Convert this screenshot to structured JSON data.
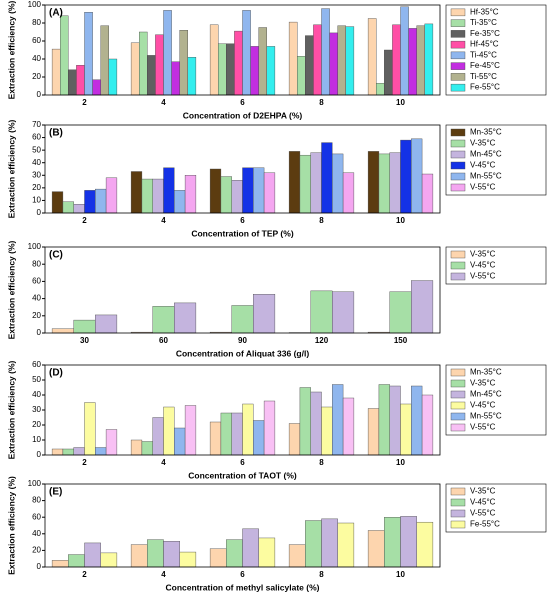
{
  "chart_data": [
    {
      "type": "bar",
      "title": "(A)",
      "x_label": "Concentration of D2EHPA (%)",
      "y_label": "Extraction efficiency (%)",
      "categories": [
        "2",
        "4",
        "6",
        "8",
        "10"
      ],
      "ylim": [
        0,
        100
      ],
      "yticks": [
        0,
        20,
        40,
        60,
        80,
        100
      ],
      "series": [
        {
          "name": "Hf-35°C",
          "color": "#fdd5ae",
          "values": [
            51,
            58,
            78,
            81,
            85
          ]
        },
        {
          "name": "Ti-35°C",
          "color": "#a6dfa6",
          "values": [
            88,
            70,
            57,
            43,
            13
          ]
        },
        {
          "name": "Fe-35°C",
          "color": "#606060",
          "values": [
            28,
            44,
            57,
            66,
            50
          ]
        },
        {
          "name": "Hf-45°C",
          "color": "#ff4fa6",
          "values": [
            33,
            67,
            71,
            78,
            78
          ]
        },
        {
          "name": "Ti-45°C",
          "color": "#8fb6ee",
          "values": [
            92,
            94,
            94,
            96,
            98
          ]
        },
        {
          "name": "Fe-45°C",
          "color": "#c22ee0",
          "values": [
            17,
            37,
            54,
            69,
            74
          ]
        },
        {
          "name": "Ti-55°C",
          "color": "#b2b28f",
          "values": [
            77,
            72,
            75,
            77,
            77
          ]
        },
        {
          "name": "Fe-55°C",
          "color": "#33eeee",
          "values": [
            40,
            42,
            54,
            76,
            79
          ]
        }
      ]
    },
    {
      "type": "bar",
      "title": "(B)",
      "x_label": "Concentration of TEP (%)",
      "y_label": "Extraction efficiency (%)",
      "categories": [
        "2",
        "4",
        "6",
        "8",
        "10"
      ],
      "ylim": [
        0,
        70
      ],
      "yticks": [
        0,
        10,
        20,
        30,
        40,
        50,
        60,
        70
      ],
      "series": [
        {
          "name": "Mn-35°C",
          "color": "#5c3c10",
          "values": [
            17,
            33,
            35,
            49,
            49
          ]
        },
        {
          "name": "V-35°C",
          "color": "#a6dfa6",
          "values": [
            9,
            27,
            29,
            46,
            47
          ]
        },
        {
          "name": "Mn-45°C",
          "color": "#c4b4de",
          "values": [
            7,
            27,
            26,
            48,
            48
          ]
        },
        {
          "name": "V-45°C",
          "color": "#1432e6",
          "values": [
            18,
            36,
            36,
            56,
            58
          ]
        },
        {
          "name": "Mn-55°C",
          "color": "#8fb6ee",
          "values": [
            19,
            18,
            36,
            47,
            59
          ]
        },
        {
          "name": "V-55°C",
          "color": "#f4a6f0",
          "values": [
            28,
            30,
            32,
            32,
            31
          ]
        }
      ]
    },
    {
      "type": "bar",
      "title": "(C)",
      "x_label": "Concentration of Aliquat 336 (g/l)",
      "y_label": "Extraction efficiency (%)",
      "categories": [
        "30",
        "60",
        "90",
        "120",
        "150"
      ],
      "ylim": [
        0,
        100
      ],
      "yticks": [
        0,
        20,
        40,
        60,
        80,
        100
      ],
      "series": [
        {
          "name": "V-35°C",
          "color": "#fdd5ae",
          "values": [
            5,
            1,
            1,
            0.5,
            1
          ]
        },
        {
          "name": "V-45°C",
          "color": "#a6dfa6",
          "values": [
            15,
            31,
            32,
            49,
            48
          ]
        },
        {
          "name": "V-55°C",
          "color": "#c4b4de",
          "values": [
            21,
            35,
            45,
            48,
            61
          ]
        }
      ]
    },
    {
      "type": "bar",
      "title": "(D)",
      "x_label": "Concentration of TAOT (%)",
      "y_label": "Extraction efficiency (%)",
      "categories": [
        "2",
        "4",
        "6",
        "8",
        "10"
      ],
      "ylim": [
        0,
        60
      ],
      "yticks": [
        0,
        10,
        20,
        30,
        40,
        50,
        60
      ],
      "series": [
        {
          "name": "Mn-35°C",
          "color": "#fdd5ae",
          "values": [
            4,
            10,
            22,
            21,
            31
          ]
        },
        {
          "name": "V-35°C",
          "color": "#a6dfa6",
          "values": [
            4,
            9,
            28,
            45,
            47
          ]
        },
        {
          "name": "Mn-45°C",
          "color": "#c4b4de",
          "values": [
            5,
            25,
            28,
            42,
            46
          ]
        },
        {
          "name": "V-45°C",
          "color": "#fcfca0",
          "values": [
            35,
            32,
            34,
            32,
            34
          ]
        },
        {
          "name": "Mn-55°C",
          "color": "#8fb6ee",
          "values": [
            5,
            18,
            23,
            47,
            46
          ]
        },
        {
          "name": "V-55°C",
          "color": "#f8c0f4",
          "values": [
            17,
            33,
            36,
            38,
            40
          ]
        }
      ]
    },
    {
      "type": "bar",
      "title": "(E)",
      "x_label": "Concentration of methyl salicylate (%)",
      "y_label": "Extraction efficiency (%)",
      "categories": [
        "2",
        "4",
        "6",
        "8",
        "10"
      ],
      "ylim": [
        0,
        100
      ],
      "yticks": [
        0,
        20,
        40,
        60,
        80,
        100
      ],
      "series": [
        {
          "name": "V-35°C",
          "color": "#fdd5ae",
          "values": [
            8,
            27,
            22,
            27,
            44
          ]
        },
        {
          "name": "V-45°C",
          "color": "#a6dfa6",
          "values": [
            15,
            33,
            33,
            56,
            60
          ]
        },
        {
          "name": "V-55°C",
          "color": "#c4b4de",
          "values": [
            29,
            31,
            46,
            58,
            61
          ]
        },
        {
          "name": "Fe-55°C",
          "color": "#fcfca0",
          "values": [
            17,
            18,
            35,
            53,
            54
          ]
        }
      ]
    }
  ]
}
